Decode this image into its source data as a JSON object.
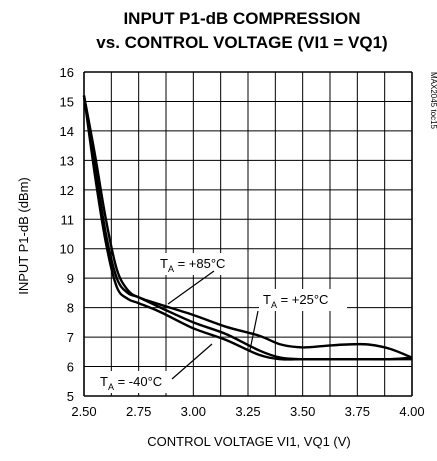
{
  "chart_data": {
    "type": "line",
    "title": "INPUT P1-dB COMPRESSION",
    "subtitle": "vs. CONTROL VOLTAGE (VI1 = VQ1)",
    "xlabel": "CONTROL VOLTAGE VI1, VQ1 (V)",
    "ylabel": "INPUT P1-dB (dBm)",
    "side_label": "MAX2045 toc15",
    "xlim": [
      2.5,
      4.0
    ],
    "ylim": [
      5,
      16
    ],
    "grid": true,
    "x_ticks": [
      "2.50",
      "2.75",
      "3.00",
      "3.25",
      "3.50",
      "3.75",
      "4.00"
    ],
    "y_ticks": [
      "5",
      "6",
      "7",
      "8",
      "9",
      "10",
      "11",
      "12",
      "13",
      "14",
      "15",
      "16"
    ],
    "series": [
      {
        "name": "T_A = +85°C",
        "x": [
          2.5,
          2.55,
          2.6,
          2.65,
          2.7,
          2.75,
          2.85,
          3.0,
          3.15,
          3.3,
          3.4,
          3.5,
          3.6,
          3.7,
          3.8,
          3.9,
          4.0
        ],
        "y": [
          15.2,
          13.2,
          11.0,
          9.3,
          8.6,
          8.35,
          8.1,
          7.75,
          7.35,
          7.05,
          6.75,
          6.65,
          6.7,
          6.75,
          6.75,
          6.6,
          6.3
        ]
      },
      {
        "name": "T_A = +25°C",
        "x": [
          2.5,
          2.55,
          2.6,
          2.65,
          2.7,
          2.75,
          2.85,
          3.0,
          3.15,
          3.3,
          3.4,
          3.5,
          3.6,
          3.7,
          3.8,
          3.9,
          4.0
        ],
        "y": [
          15.2,
          12.8,
          10.5,
          9.0,
          8.5,
          8.35,
          8.0,
          7.5,
          7.1,
          6.55,
          6.3,
          6.25,
          6.25,
          6.25,
          6.25,
          6.25,
          6.25
        ]
      },
      {
        "name": "T_A = -40°C",
        "x": [
          2.5,
          2.55,
          2.6,
          2.65,
          2.7,
          2.75,
          2.85,
          3.0,
          3.15,
          3.3,
          3.4,
          3.5,
          3.6,
          3.7,
          3.8,
          3.9,
          4.0
        ],
        "y": [
          15.2,
          12.5,
          10.2,
          8.7,
          8.3,
          8.15,
          7.85,
          7.3,
          6.9,
          6.4,
          6.25,
          6.25,
          6.25,
          6.25,
          6.25,
          6.25,
          6.3
        ]
      }
    ],
    "annotations": [
      {
        "main": "T",
        "sub": "A",
        "rest": " = +85°C",
        "series": "T_A = +85°C"
      },
      {
        "main": "T",
        "sub": "A",
        "rest": " = +25°C",
        "series": "T_A = +25°C"
      },
      {
        "main": "T",
        "sub": "A",
        "rest": " = -40°C",
        "series": "T_A = -40°C"
      }
    ]
  }
}
